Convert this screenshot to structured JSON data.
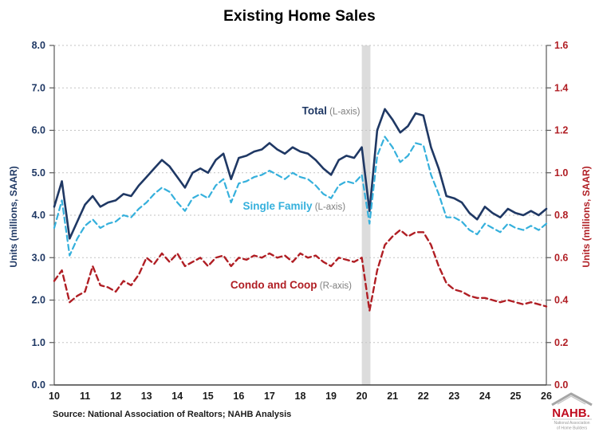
{
  "title": "Existing Home Sales",
  "source": "Source: National Association of Realtors; NAHB Analysis",
  "logo": {
    "name": "NAHB.",
    "line1": "National Association",
    "line2": "of Home Builders"
  },
  "chart_data": {
    "type": "line",
    "title": "Existing Home Sales",
    "x_axis": {
      "min": 10,
      "max": 26,
      "tick_values": [
        10,
        11,
        12,
        13,
        14,
        15,
        16,
        17,
        18,
        19,
        20,
        21,
        22,
        23,
        24,
        25,
        26
      ],
      "tick_labels": [
        "10",
        "11",
        "12",
        "13",
        "14",
        "15",
        "16",
        "17",
        "18",
        "19",
        "20",
        "21",
        "22",
        "23",
        "24",
        "25",
        "26"
      ]
    },
    "left_axis": {
      "title": "Units (millions, SAAR)",
      "min": 0,
      "max": 8,
      "color": "#1f3864",
      "tick_values": [
        0,
        1,
        2,
        3,
        4,
        5,
        6,
        7,
        8
      ],
      "tick_labels": [
        "0.0",
        "1.0",
        "2.0",
        "3.0",
        "4.0",
        "5.0",
        "6.0",
        "7.0",
        "8.0"
      ]
    },
    "right_axis": {
      "title": "Units (millions, SAAR)",
      "min": 0,
      "max": 1.6,
      "color": "#b01e24",
      "tick_values": [
        0,
        0.2,
        0.4,
        0.6,
        0.8,
        1.0,
        1.2,
        1.4,
        1.6
      ],
      "tick_labels": [
        "0.0",
        "0.2",
        "0.4",
        "0.6",
        "0.8",
        "1.0",
        "1.2",
        "1.4",
        "1.6"
      ]
    },
    "grid": {
      "show": true,
      "style": "dotted",
      "color": "#c3c3c3"
    },
    "recession_band": {
      "x_from": 20.0,
      "x_to": 20.28,
      "color": "#dcdcdc"
    },
    "legend_position": "inline-annotations",
    "x": [
      10,
      10.25,
      10.5,
      10.75,
      11,
      11.25,
      11.5,
      11.75,
      12,
      12.25,
      12.5,
      12.75,
      13,
      13.25,
      13.5,
      13.75,
      14,
      14.25,
      14.5,
      14.75,
      15,
      15.25,
      15.5,
      15.75,
      16,
      16.25,
      16.5,
      16.75,
      17,
      17.25,
      17.5,
      17.75,
      18,
      18.25,
      18.5,
      18.75,
      19,
      19.25,
      19.5,
      19.75,
      20,
      20.25,
      20.5,
      20.75,
      21,
      21.25,
      21.5,
      21.75,
      22,
      22.25,
      22.5,
      22.75,
      23,
      23.25,
      23.5,
      23.75,
      24,
      24.25,
      24.5,
      24.75,
      25,
      25.25,
      25.5,
      25.75,
      26
    ],
    "series": [
      {
        "name": "Total",
        "axis": "left",
        "color": "#1f3864",
        "style": "solid",
        "width": 2.6,
        "values": [
          4.2,
          4.8,
          3.45,
          3.85,
          4.25,
          4.45,
          4.2,
          4.3,
          4.35,
          4.5,
          4.45,
          4.7,
          4.9,
          5.1,
          5.3,
          5.15,
          4.9,
          4.65,
          5.0,
          5.1,
          5.0,
          5.3,
          5.45,
          4.85,
          5.35,
          5.4,
          5.5,
          5.55,
          5.7,
          5.55,
          5.45,
          5.6,
          5.5,
          5.45,
          5.3,
          5.1,
          4.95,
          5.3,
          5.4,
          5.35,
          5.6,
          4.1,
          6.0,
          6.5,
          6.25,
          5.95,
          6.1,
          6.4,
          6.35,
          5.6,
          5.1,
          4.45,
          4.4,
          4.3,
          4.05,
          3.9,
          4.2,
          4.05,
          3.95,
          4.15,
          4.05,
          4.0,
          4.1,
          4.0,
          4.15
        ]
      },
      {
        "name": "Single Family",
        "axis": "left",
        "color": "#35b0dc",
        "style": "dashed",
        "width": 2.2,
        "values": [
          3.7,
          4.35,
          3.05,
          3.45,
          3.75,
          3.9,
          3.7,
          3.8,
          3.85,
          4.0,
          3.95,
          4.15,
          4.3,
          4.5,
          4.65,
          4.55,
          4.3,
          4.1,
          4.4,
          4.5,
          4.4,
          4.7,
          4.85,
          4.3,
          4.75,
          4.8,
          4.9,
          4.95,
          5.05,
          4.95,
          4.85,
          5.0,
          4.9,
          4.85,
          4.7,
          4.5,
          4.4,
          4.7,
          4.8,
          4.75,
          4.95,
          3.8,
          5.4,
          5.85,
          5.6,
          5.25,
          5.4,
          5.7,
          5.65,
          4.95,
          4.5,
          3.95,
          3.95,
          3.85,
          3.65,
          3.55,
          3.8,
          3.7,
          3.6,
          3.8,
          3.7,
          3.65,
          3.75,
          3.65,
          3.8
        ]
      },
      {
        "name": "Condo and Coop",
        "axis": "right",
        "color": "#b01e24",
        "style": "dashed",
        "width": 2.4,
        "values": [
          0.49,
          0.54,
          0.39,
          0.42,
          0.44,
          0.56,
          0.47,
          0.46,
          0.44,
          0.49,
          0.47,
          0.52,
          0.6,
          0.57,
          0.62,
          0.58,
          0.62,
          0.56,
          0.58,
          0.6,
          0.56,
          0.6,
          0.61,
          0.56,
          0.6,
          0.59,
          0.61,
          0.6,
          0.62,
          0.6,
          0.61,
          0.58,
          0.62,
          0.6,
          0.61,
          0.58,
          0.56,
          0.6,
          0.59,
          0.58,
          0.6,
          0.35,
          0.54,
          0.66,
          0.7,
          0.73,
          0.7,
          0.72,
          0.72,
          0.66,
          0.56,
          0.48,
          0.45,
          0.44,
          0.42,
          0.41,
          0.41,
          0.4,
          0.39,
          0.4,
          0.39,
          0.38,
          0.39,
          0.38,
          0.37
        ]
      }
    ],
    "annotations": [
      {
        "id": "total",
        "label": "Total",
        "suffix": " (L-axis)",
        "color": "#1f3864",
        "suffix_color": "#7f7f7f",
        "axis": "left",
        "x": 19.0,
        "value": 6.38
      },
      {
        "id": "single-family",
        "label": "Single Family",
        "suffix": " (L-axis)",
        "color": "#35b0dc",
        "suffix_color": "#7f7f7f",
        "axis": "left",
        "x": 17.8,
        "value": 4.13
      },
      {
        "id": "condo-coop",
        "label": "Condo and Coop",
        "suffix": " (R-axis)",
        "color": "#b01e24",
        "suffix_color": "#7f7f7f",
        "axis": "left",
        "x": 17.7,
        "value": 2.27
      }
    ]
  }
}
